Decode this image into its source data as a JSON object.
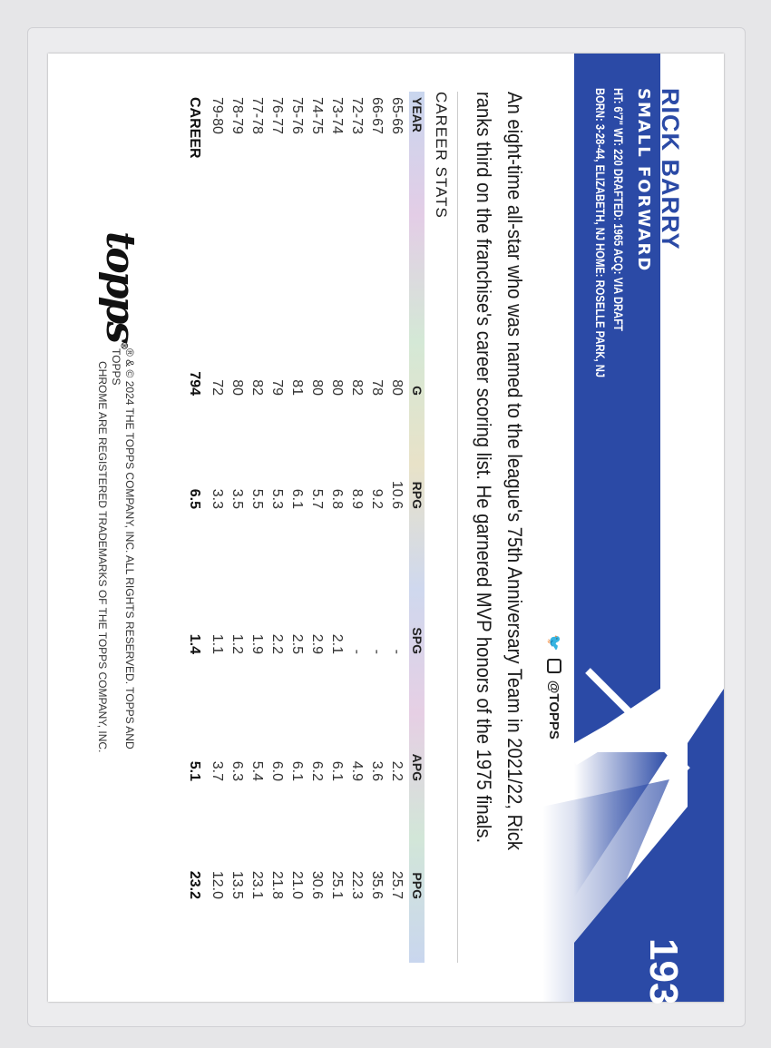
{
  "player": {
    "name": "RICK BARRY",
    "position": "SMALL FORWARD",
    "info_line1": "HT: 6'7\"  WT: 220  DRAFTED: 1965  ACQ: VIA DRAFT",
    "info_line2": "BORN: 3-28-44, ELIZABETH, NJ  HOME: ROSELLE PARK, NJ",
    "card_number": "193"
  },
  "social": {
    "handle": "@TOPPS",
    "icons": [
      "twitter-icon",
      "instagram-icon"
    ]
  },
  "bio": "An eight-time all-star who was named to the league's 75th Anniversary Team in 2021/22, Rick ranks third on the franchise's career scoring list. He garnered MVP honors of the 1975 finals.",
  "stats": {
    "title": "CAREER STATS",
    "headers": [
      "YEAR",
      "G",
      "RPG",
      "SPG",
      "APG",
      "PPG"
    ],
    "rows": [
      [
        "65-66",
        "80",
        "10.6",
        "-",
        "2.2",
        "25.7"
      ],
      [
        "66-67",
        "78",
        "9.2",
        "-",
        "3.6",
        "35.6"
      ],
      [
        "72-73",
        "82",
        "8.9",
        "-",
        "4.9",
        "22.3"
      ],
      [
        "73-74",
        "80",
        "6.8",
        "2.1",
        "6.1",
        "25.1"
      ],
      [
        "74-75",
        "80",
        "5.7",
        "2.9",
        "6.2",
        "30.6"
      ],
      [
        "75-76",
        "81",
        "6.1",
        "2.5",
        "6.1",
        "21.0"
      ],
      [
        "76-77",
        "79",
        "5.3",
        "2.2",
        "6.0",
        "21.8"
      ],
      [
        "77-78",
        "82",
        "5.5",
        "1.9",
        "5.4",
        "23.1"
      ],
      [
        "78-79",
        "80",
        "3.5",
        "1.2",
        "6.3",
        "13.5"
      ],
      [
        "79-80",
        "72",
        "3.3",
        "1.1",
        "3.7",
        "12.0"
      ]
    ],
    "career": [
      "CAREER",
      "794",
      "6.5",
      "1.4",
      "5.1",
      "23.2"
    ]
  },
  "brand": {
    "logo": "topps"
  },
  "legal": {
    "line1": "® & © 2024 THE TOPPS COMPANY, INC. ALL RIGHTS RESERVED. TOPPS AND TOPPS",
    "line2": "CHROME ARE REGISTERED TRADEMARKS OF THE TOPPS COMPANY, INC."
  },
  "colors": {
    "brand_blue": "#2b4aa6"
  }
}
